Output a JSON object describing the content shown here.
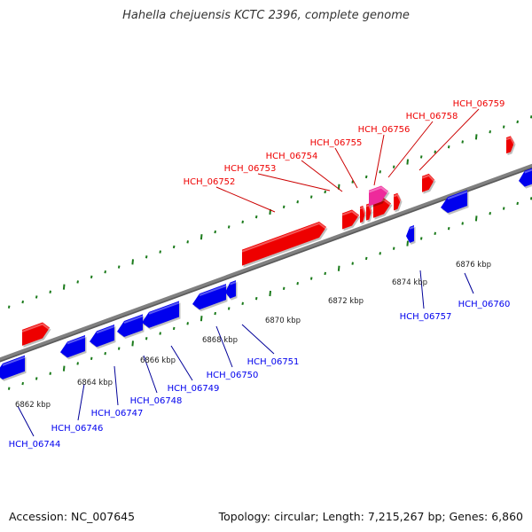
{
  "title": "Hahella chejuensis KCTC 2396, complete genome",
  "footer": {
    "accession": "Accession: NC_007645",
    "summary": "Topology: circular; Length: 7,215,267 bp; Genes: 6,860"
  },
  "colors": {
    "forward": "#ee0000",
    "reverse": "#0000ee",
    "highlight": "#ee2a9b",
    "backbone": "#808080",
    "ticks": "#1a7a1a",
    "leader_forward": "#cc0000",
    "leader_reverse": "#000099"
  },
  "scale_ticks": [
    {
      "label": "6862 kbp"
    },
    {
      "label": "6864 kbp"
    },
    {
      "label": "6866 kbp"
    },
    {
      "label": "6868 kbp"
    },
    {
      "label": "6870 kbp"
    },
    {
      "label": "6872 kbp"
    },
    {
      "label": "6874 kbp"
    },
    {
      "label": "6876 kbp"
    }
  ],
  "forward_labels": [
    {
      "name": "HCH_06752"
    },
    {
      "name": "HCH_06753"
    },
    {
      "name": "HCH_06754"
    },
    {
      "name": "HCH_06755"
    },
    {
      "name": "HCH_06756"
    },
    {
      "name": "HCH_06758"
    },
    {
      "name": "HCH_06759"
    }
  ],
  "reverse_labels": [
    {
      "name": "HCH_06744"
    },
    {
      "name": "HCH_06746"
    },
    {
      "name": "HCH_06747"
    },
    {
      "name": "HCH_06748"
    },
    {
      "name": "HCH_06749"
    },
    {
      "name": "HCH_06750"
    },
    {
      "name": "HCH_06751"
    },
    {
      "name": "HCH_06757"
    },
    {
      "name": "HCH_06760"
    }
  ]
}
